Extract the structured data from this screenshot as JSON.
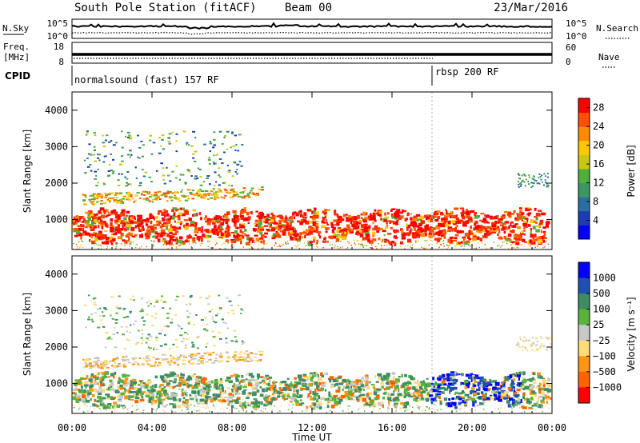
{
  "header": {
    "station": "South Pole Station (fitACF)",
    "beam": "Beam 00",
    "date": "23/Mar/2016"
  },
  "summary": {
    "nsky_label": "N.Sky",
    "nsearch_label": "N.Search",
    "noise_ticks": [
      "10^5",
      "10^0"
    ],
    "freq_label_1": "Freq.",
    "freq_label_2": "[MHz]",
    "freq_ticks": [
      "18",
      "8"
    ],
    "nave_label": "Nave",
    "nave_ticks": [
      "60",
      "0"
    ],
    "cpid_label": "CPID",
    "cpid_segments": [
      {
        "label": "normalsound (fast) 157 RF",
        "start_hour": 0
      },
      {
        "label": "rbsp 200 RF",
        "start_hour": 18
      }
    ]
  },
  "colors": {
    "power": [
      "#0000ff",
      "#1c3cb4",
      "#286ea0",
      "#3c9664",
      "#50af3c",
      "#c8c814",
      "#ffc800",
      "#ff8c00",
      "#ff5000",
      "#ff0000"
    ],
    "velocity": [
      "#0000ff",
      "#1e50b4",
      "#3c8c64",
      "#5ab43c",
      "#c8c8c8",
      "#ffdc78",
      "#ff9614",
      "#ff6400",
      "#ff0000"
    ]
  },
  "chart_data": [
    {
      "type": "heatmap",
      "title": "",
      "xlabel": "",
      "ylabel": "Slant Range [km]",
      "x_ticks": [
        "00:00",
        "04:00",
        "08:00",
        "12:00",
        "16:00",
        "20:00",
        "00:00"
      ],
      "y_ticks": [
        1000,
        2000,
        3000,
        4000
      ],
      "xlim": [
        0,
        24
      ],
      "ylim": [
        180,
        4500
      ],
      "colorbar": {
        "label": "Power [dB]",
        "ticks": [
          4,
          8,
          12,
          16,
          20,
          24,
          28
        ],
        "range": [
          0,
          30
        ]
      }
    },
    {
      "type": "heatmap",
      "title": "",
      "xlabel": "Time UT",
      "ylabel": "Slant Range [km]",
      "x_ticks": [
        "00:00",
        "04:00",
        "08:00",
        "12:00",
        "16:00",
        "20:00",
        "00:00"
      ],
      "y_ticks": [
        1000,
        2000,
        3000,
        4000
      ],
      "xlim": [
        0,
        24
      ],
      "ylim": [
        180,
        4500
      ],
      "colorbar": {
        "label": "Velocity [m s⁻¹]",
        "ticks": [
          "1000",
          "500",
          "100",
          "25",
          "−25",
          "−100",
          "−500",
          "−1000"
        ]
      }
    }
  ]
}
